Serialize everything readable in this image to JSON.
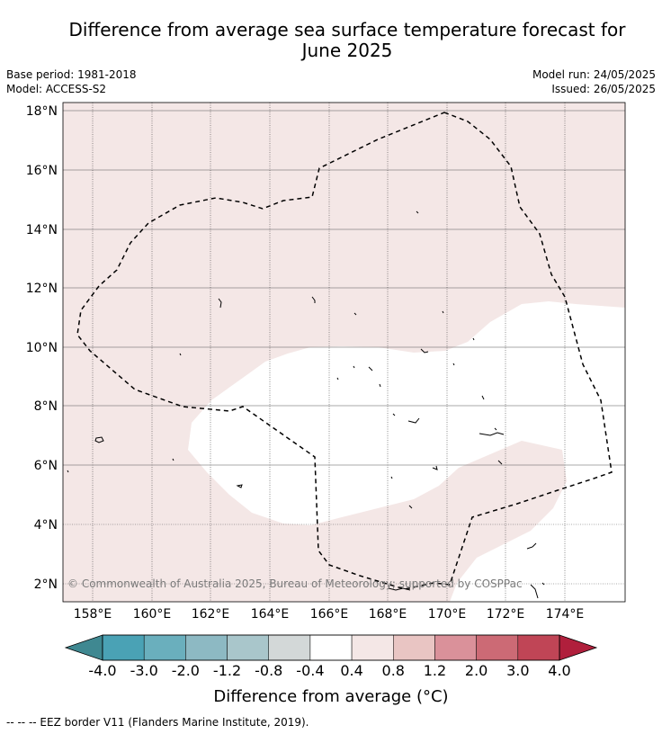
{
  "title_line1": "Difference from average sea surface temperature forecast for",
  "title_line2": "June 2025",
  "base_period": "Base period: 1981-2018",
  "model": "Model: ACCESS-S2",
  "model_run": "Model run: 24/05/2025",
  "issued": "Issued: 26/05/2025",
  "copyright": "© Commonwealth of Australia 2025, Bureau of Meteorology; supported by COSPPac",
  "footnote": "--  --  -- EEZ border V11 (Flanders Marine Institute, 2019).",
  "map": {
    "lat_ticks": [
      "18°N",
      "16°N",
      "14°N",
      "12°N",
      "10°N",
      "8°N",
      "6°N",
      "4°N",
      "2°N"
    ],
    "lon_ticks": [
      "158°E",
      "160°E",
      "162°E",
      "164°E",
      "166°E",
      "168°E",
      "170°E",
      "172°E",
      "174°E"
    ],
    "background_category": "0.4 to 0.8",
    "region_category": "-0.4 to 0.4"
  },
  "colorbar": {
    "label": "Difference from average (°C)",
    "boundaries": [
      "-4.0",
      "-3.0",
      "-2.0",
      "-1.2",
      "-0.8",
      "-0.4",
      "0.4",
      "0.8",
      "1.2",
      "2.0",
      "3.0",
      "4.0"
    ],
    "colors": [
      "#4aa2b5",
      "#6aafbd",
      "#8db9c3",
      "#a9c6cb",
      "#d3d8d8",
      "#ffffff",
      "#f4e7e6",
      "#e9c5c3",
      "#da919a",
      "#cc6a75",
      "#c04556"
    ],
    "extend_low_color": "#3f8891",
    "extend_high_color": "#b01f3c"
  },
  "colors": {
    "positive_region": "#f4e7e6",
    "neutral_region": "#ffffff",
    "grid": "#555555"
  }
}
